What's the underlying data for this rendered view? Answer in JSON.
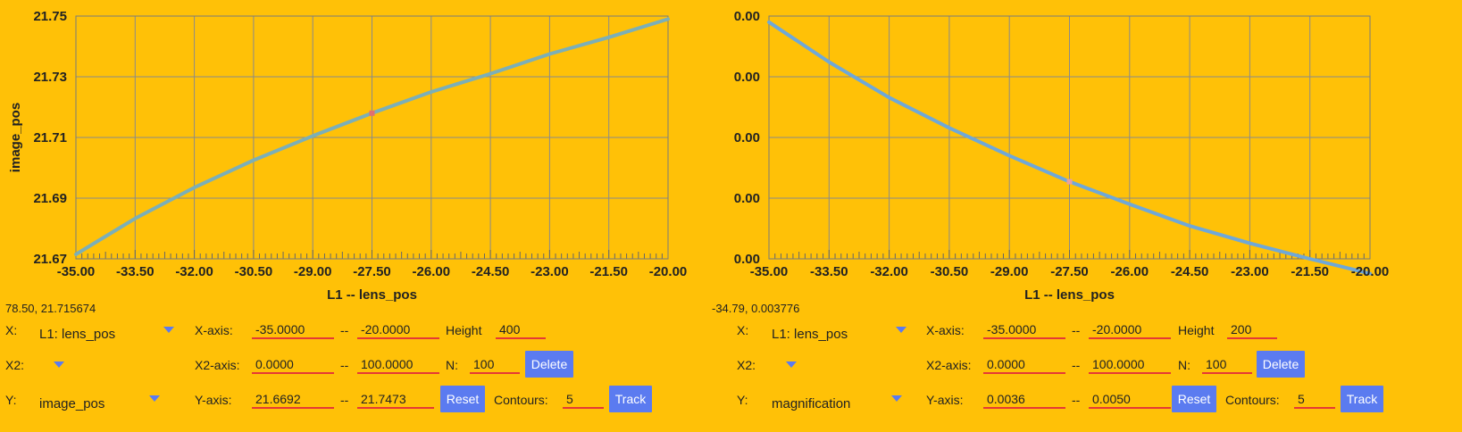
{
  "chart_data": [
    {
      "type": "line",
      "xlabel": "L1 -- lens_pos",
      "ylabel": "image_pos",
      "xlim": [
        -35.0,
        -20.0
      ],
      "ylim": [
        21.67,
        21.75
      ],
      "x_ticks": [
        "-35.00",
        "-33.50",
        "-32.00",
        "-30.50",
        "-29.00",
        "-27.50",
        "-26.00",
        "-24.50",
        "-23.00",
        "-21.50",
        "-20.00"
      ],
      "y_ticks": [
        "21.75",
        "21.73",
        "21.71",
        "21.69",
        "21.67"
      ],
      "grid": true,
      "series": [
        {
          "color": "#7BAFB8",
          "x": [
            -35.0,
            -33.5,
            -32.0,
            -30.5,
            -29.0,
            -27.5,
            -26.0,
            -24.5,
            -23.0,
            -21.5,
            -20.0
          ],
          "y": [
            21.6715,
            21.6833,
            21.6935,
            21.7025,
            21.7105,
            21.718,
            21.725,
            21.731,
            21.7375,
            21.743,
            21.749
          ]
        }
      ],
      "marker": {
        "x": -27.5,
        "y": 21.718,
        "color": "#E07070"
      }
    },
    {
      "type": "line",
      "xlabel": "L1 -- lens_pos",
      "ylabel": "magnification",
      "xlim": [
        -35.0,
        -20.0
      ],
      "ylim": [
        0.0036,
        0.005
      ],
      "x_ticks": [
        "-35.00",
        "-33.50",
        "-32.00",
        "-30.50",
        "-29.00",
        "-27.50",
        "-26.00",
        "-24.50",
        "-23.00",
        "-21.50",
        "-20.00"
      ],
      "y_ticks": [
        "0.00",
        "0.00",
        "0.00",
        "0.00",
        "0.00"
      ],
      "grid": true,
      "series": [
        {
          "color": "#6FA8D8",
          "x": [
            -35.0,
            -33.5,
            -32.0,
            -30.5,
            -29.0,
            -27.5,
            -26.0,
            -24.5,
            -23.0,
            -21.5,
            -20.0
          ],
          "y": [
            0.004965,
            0.004735,
            0.00453,
            0.004355,
            0.004195,
            0.004045,
            0.003915,
            0.00379,
            0.00369,
            0.0036,
            0.003515
          ]
        }
      ],
      "marker": {
        "x": -27.5,
        "y": 0.004045,
        "color": "#E8A0A0"
      }
    }
  ],
  "panels": [
    {
      "coord_readout": "78.50, 21.715674",
      "x_label": "X:",
      "x_select": "L1: lens_pos",
      "xaxis_label": "X-axis:",
      "xaxis_min": "-35.0000",
      "xaxis_sep": "--",
      "xaxis_max": "-20.0000",
      "height_label": "Height",
      "height_value": "400",
      "x2_label": "X2:",
      "x2_select": "",
      "x2axis_label": "X2-axis:",
      "x2axis_min": "0.0000",
      "x2axis_sep": "--",
      "x2axis_max": "100.0000",
      "n_label": "N:",
      "n_value": "100",
      "delete_label": "Delete",
      "y_label": "Y:",
      "y_select": "image_pos",
      "yaxis_label": "Y-axis:",
      "yaxis_min": "21.6692",
      "yaxis_sep": "--",
      "yaxis_max": "21.7473",
      "reset_label": "Reset",
      "contours_label": "Contours:",
      "contours_value": "5",
      "track_label": "Track"
    },
    {
      "coord_readout": "-34.79, 0.003776",
      "x_label": "X:",
      "x_select": "L1: lens_pos",
      "xaxis_label": "X-axis:",
      "xaxis_min": "-35.0000",
      "xaxis_sep": "--",
      "xaxis_max": "-20.0000",
      "height_label": "Height",
      "height_value": "200",
      "x2_label": "X2:",
      "x2_select": "",
      "x2axis_label": "X2-axis:",
      "x2axis_min": "0.0000",
      "x2axis_sep": "--",
      "x2axis_max": "100.0000",
      "n_label": "N:",
      "n_value": "100",
      "delete_label": "Delete",
      "y_label": "Y:",
      "y_select": "magnification",
      "yaxis_label": "Y-axis:",
      "yaxis_min": "0.0036",
      "yaxis_sep": "--",
      "yaxis_max": "0.0050",
      "reset_label": "Reset",
      "contours_label": "Contours:",
      "contours_value": "5",
      "track_label": "Track"
    }
  ]
}
